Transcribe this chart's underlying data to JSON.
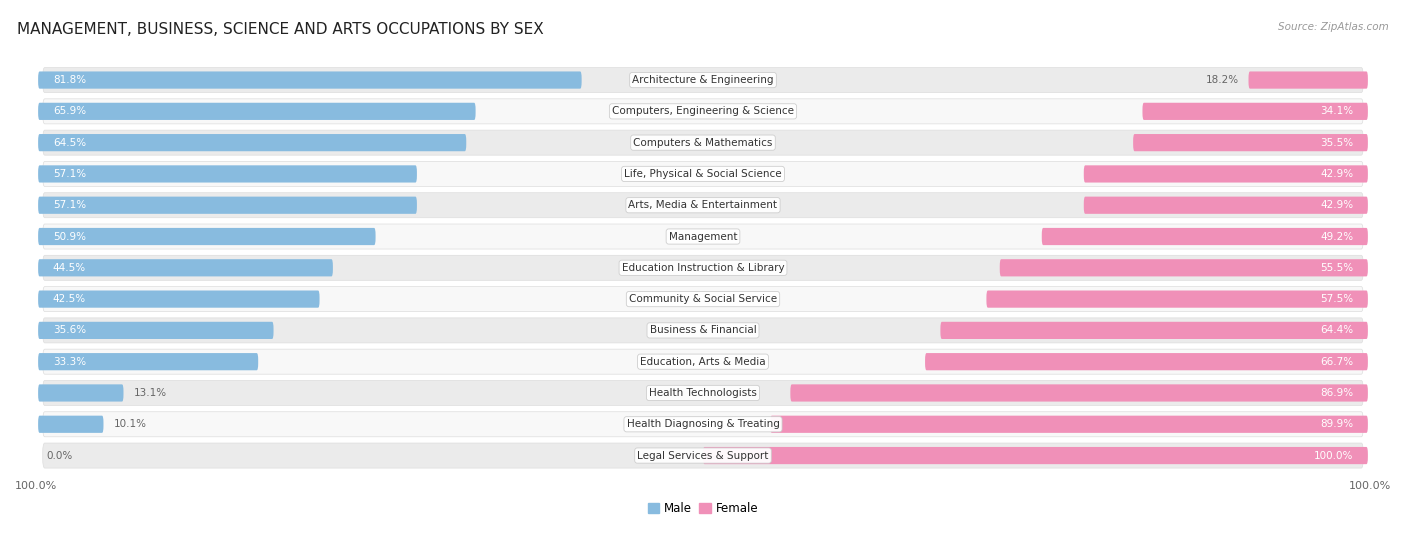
{
  "title": "MANAGEMENT, BUSINESS, SCIENCE AND ARTS OCCUPATIONS BY SEX",
  "source": "Source: ZipAtlas.com",
  "categories": [
    "Architecture & Engineering",
    "Computers, Engineering & Science",
    "Computers & Mathematics",
    "Life, Physical & Social Science",
    "Arts, Media & Entertainment",
    "Management",
    "Education Instruction & Library",
    "Community & Social Service",
    "Business & Financial",
    "Education, Arts & Media",
    "Health Technologists",
    "Health Diagnosing & Treating",
    "Legal Services & Support"
  ],
  "male": [
    81.8,
    65.9,
    64.5,
    57.1,
    57.1,
    50.9,
    44.5,
    42.5,
    35.6,
    33.3,
    13.1,
    10.1,
    0.0
  ],
  "female": [
    18.2,
    34.1,
    35.5,
    42.9,
    42.9,
    49.2,
    55.5,
    57.5,
    64.4,
    66.7,
    86.9,
    89.9,
    100.0
  ],
  "male_color": "#88bbdf",
  "female_color": "#f090b8",
  "bg_even_color": "#ebebeb",
  "bg_odd_color": "#f8f8f8",
  "title_fontsize": 11,
  "label_fontsize": 7.5,
  "pct_fontsize": 7.5,
  "axis_label_fontsize": 8,
  "legend_fontsize": 8.5
}
